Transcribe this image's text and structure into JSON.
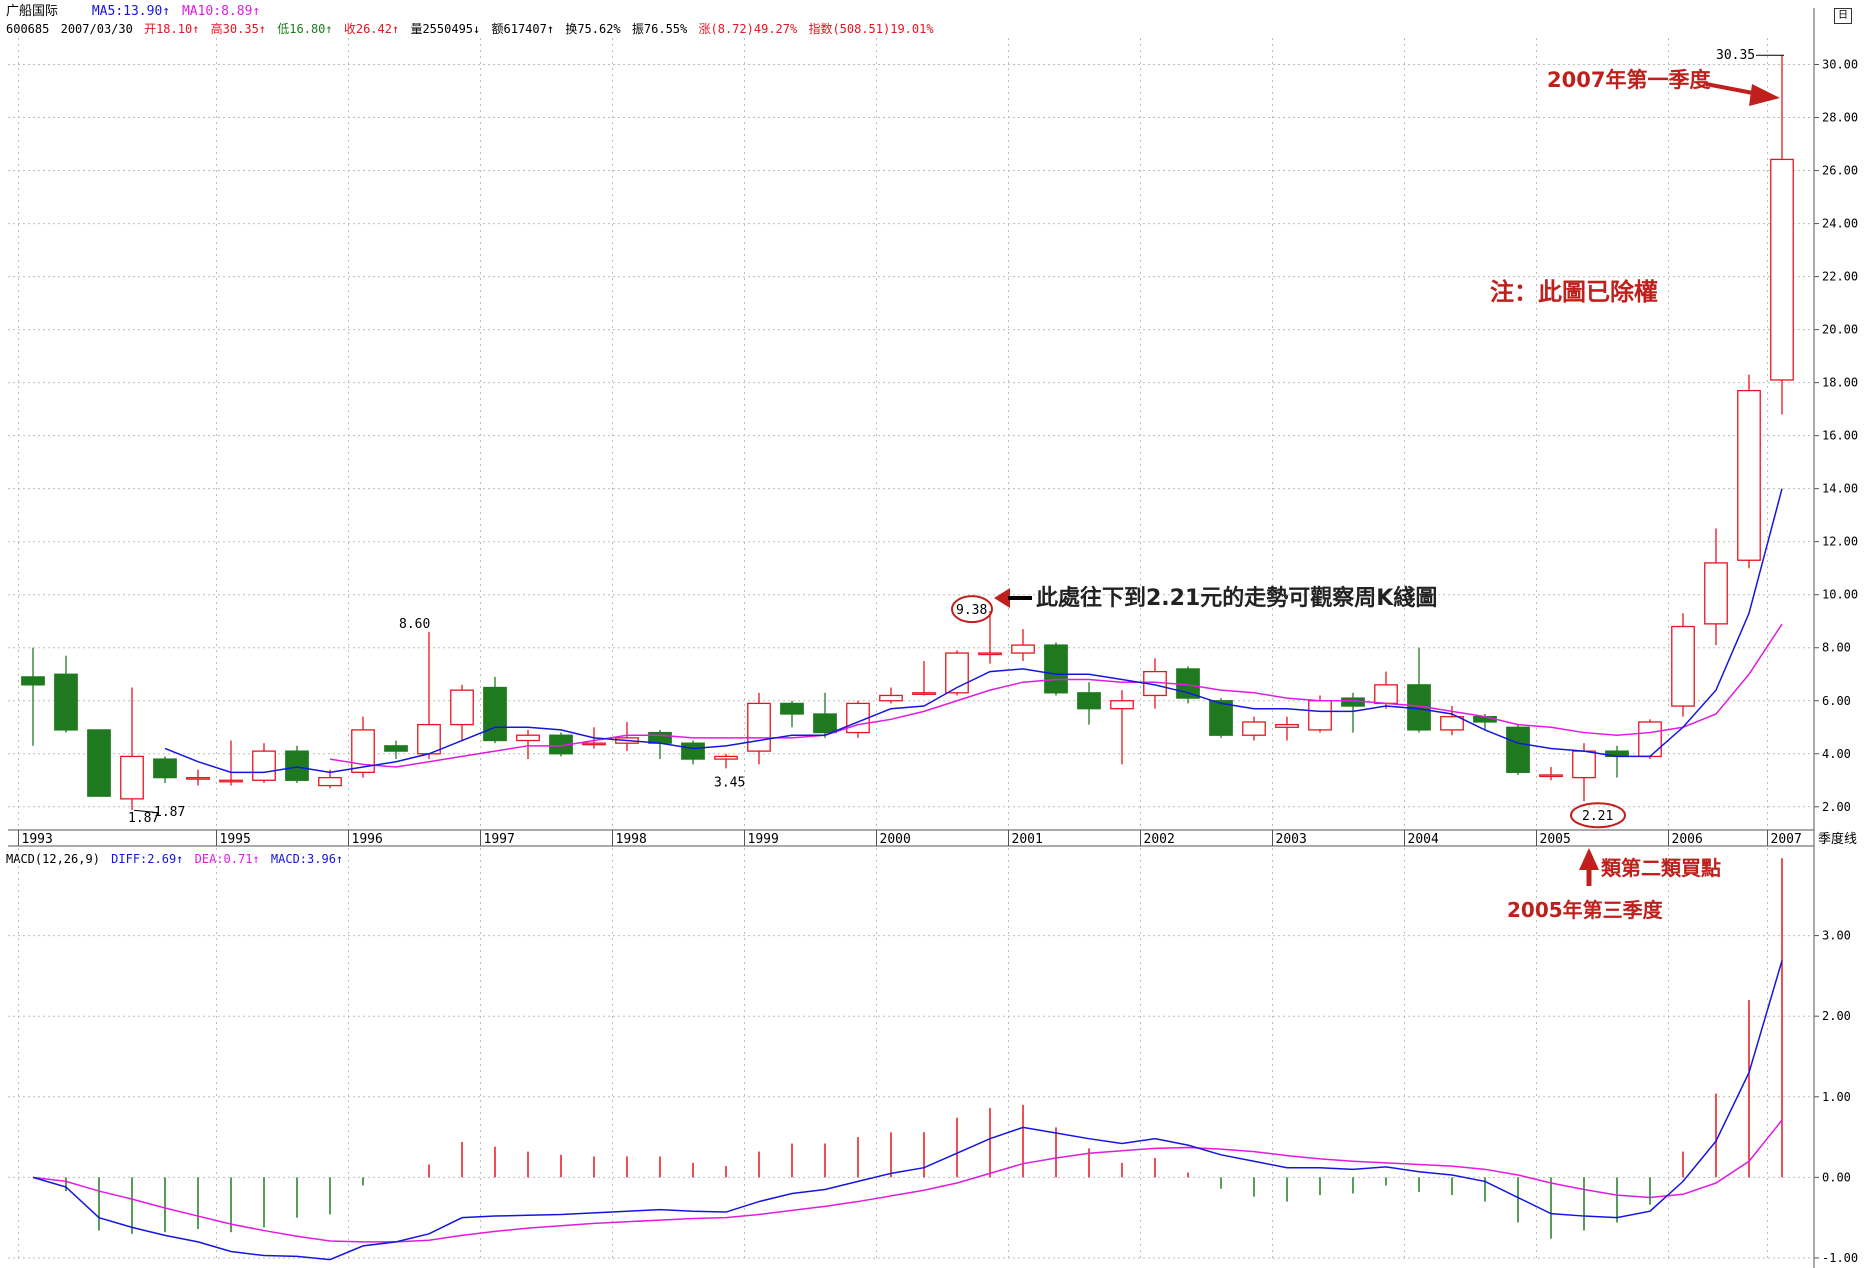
{
  "colors": {
    "up": "#e8141e",
    "down": "#1f7a1f",
    "ma5": "#1515e0",
    "ma10": "#e01ce0",
    "annotation": "#c0201c",
    "grid": "#bdbdbd"
  },
  "header": {
    "name": "广船国际",
    "ma5": "MA5:13.90↑",
    "ma10": "MA10:8.89↑",
    "code": "600685",
    "date": "2007/03/30",
    "open": "开18.10↑",
    "high": "高30.35↑",
    "low": "低16.80↑",
    "close": "收26.42↑",
    "volume": "量2550495↓",
    "amount": "额617407↑",
    "turnover": "换75.62%",
    "amplitude": "振76.55%",
    "change": "涨(8.72)49.27%",
    "index": "指数(508.51)19.01%"
  },
  "macd_header": {
    "label": "MACD(12,26,9)",
    "diff": "DIFF:2.69↑",
    "dea": "DEA:0.71↑",
    "macd": "MACD:3.96↑"
  },
  "period_label": "季度线",
  "annotations": {
    "q1_2007": "2007年第一季度",
    "note": "注：此圖已除權",
    "weekly_note": "此處往下到2.21元的走勢可觀察周K綫圖",
    "buy_point": "類第二類買點",
    "q3_2005": "2005年第三季度",
    "peak_2001": "9.38",
    "low_2005": "2.21",
    "high_1996": "8.60",
    "low_1993_a": "1.87",
    "low_1993_b": "1.87",
    "low_1999": "3.45",
    "high_2007": "30.35"
  },
  "bottom_caption": "...",
  "chart_data": [
    {
      "type": "candlestick",
      "title": "",
      "period": "quarter",
      "x_labels": [
        "1993",
        "1995",
        "1996",
        "1997",
        "1998",
        "1999",
        "2000",
        "2001",
        "2002",
        "2003",
        "2004",
        "2005",
        "2006",
        "2007"
      ],
      "yticks": [
        "2.00",
        "4.00",
        "6.00",
        "8.00",
        "10.00",
        "12.00",
        "14.00",
        "16.00",
        "18.00",
        "20.00",
        "22.00",
        "24.00",
        "26.00",
        "28.00",
        "30.00"
      ],
      "ylim": [
        1.2,
        31.0
      ],
      "candles": [
        {
          "o": 6.9,
          "c": 6.6,
          "h": 8.0,
          "l": 4.3
        },
        {
          "o": 7.0,
          "c": 4.9,
          "h": 7.7,
          "l": 4.8
        },
        {
          "o": 4.9,
          "c": 2.4,
          "h": 4.9,
          "l": 2.4
        },
        {
          "o": 2.3,
          "c": 3.9,
          "h": 6.5,
          "l": 1.87
        },
        {
          "o": 3.8,
          "c": 3.1,
          "h": 3.9,
          "l": 2.9
        },
        {
          "o": 3.1,
          "c": 3.1,
          "h": 3.4,
          "l": 2.8
        },
        {
          "o": 3.0,
          "c": 3.0,
          "h": 4.5,
          "l": 2.8
        },
        {
          "o": 3.0,
          "c": 4.1,
          "h": 4.4,
          "l": 2.9
        },
        {
          "o": 4.1,
          "c": 3.0,
          "h": 4.3,
          "l": 2.9
        },
        {
          "o": 2.8,
          "c": 3.1,
          "h": 3.4,
          "l": 2.7
        },
        {
          "o": 3.3,
          "c": 4.9,
          "h": 5.4,
          "l": 3.1
        },
        {
          "o": 4.3,
          "c": 4.1,
          "h": 4.5,
          "l": 3.8
        },
        {
          "o": 4.0,
          "c": 5.1,
          "h": 8.6,
          "l": 3.8
        },
        {
          "o": 5.1,
          "c": 6.4,
          "h": 6.6,
          "l": 4.5
        },
        {
          "o": 6.5,
          "c": 4.5,
          "h": 6.9,
          "l": 4.4
        },
        {
          "o": 4.5,
          "c": 4.7,
          "h": 4.9,
          "l": 3.8
        },
        {
          "o": 4.7,
          "c": 4.0,
          "h": 4.8,
          "l": 3.9
        },
        {
          "o": 4.4,
          "c": 4.4,
          "h": 5.0,
          "l": 4.2
        },
        {
          "o": 4.4,
          "c": 4.6,
          "h": 5.2,
          "l": 4.1
        },
        {
          "o": 4.8,
          "c": 4.4,
          "h": 4.9,
          "l": 3.8
        },
        {
          "o": 4.4,
          "c": 3.8,
          "h": 4.5,
          "l": 3.6
        },
        {
          "o": 3.8,
          "c": 3.9,
          "h": 4.0,
          "l": 3.45
        },
        {
          "o": 4.1,
          "c": 5.9,
          "h": 6.3,
          "l": 3.6
        },
        {
          "o": 5.9,
          "c": 5.5,
          "h": 6.0,
          "l": 5.0
        },
        {
          "o": 5.5,
          "c": 4.8,
          "h": 6.3,
          "l": 4.6
        },
        {
          "o": 4.8,
          "c": 5.9,
          "h": 6.0,
          "l": 4.6
        },
        {
          "o": 6.0,
          "c": 6.2,
          "h": 6.5,
          "l": 5.9
        },
        {
          "o": 6.3,
          "c": 6.3,
          "h": 7.5,
          "l": 6.2
        },
        {
          "o": 6.3,
          "c": 7.8,
          "h": 7.9,
          "l": 6.2
        },
        {
          "o": 7.8,
          "c": 7.8,
          "h": 9.38,
          "l": 7.4
        },
        {
          "o": 7.8,
          "c": 8.1,
          "h": 8.7,
          "l": 7.5
        },
        {
          "o": 8.1,
          "c": 6.3,
          "h": 8.2,
          "l": 6.2
        },
        {
          "o": 6.3,
          "c": 5.7,
          "h": 6.7,
          "l": 5.1
        },
        {
          "o": 5.7,
          "c": 6.0,
          "h": 6.4,
          "l": 3.6
        },
        {
          "o": 6.2,
          "c": 7.1,
          "h": 7.6,
          "l": 5.7
        },
        {
          "o": 7.2,
          "c": 6.1,
          "h": 7.3,
          "l": 5.9
        },
        {
          "o": 6.0,
          "c": 4.7,
          "h": 6.1,
          "l": 4.6
        },
        {
          "o": 4.7,
          "c": 5.2,
          "h": 5.4,
          "l": 4.5
        },
        {
          "o": 5.0,
          "c": 5.1,
          "h": 5.4,
          "l": 4.5
        },
        {
          "o": 4.9,
          "c": 6.0,
          "h": 6.2,
          "l": 4.8
        },
        {
          "o": 6.1,
          "c": 5.8,
          "h": 6.3,
          "l": 4.8
        },
        {
          "o": 5.9,
          "c": 6.6,
          "h": 7.1,
          "l": 5.7
        },
        {
          "o": 6.6,
          "c": 4.9,
          "h": 8.0,
          "l": 4.8
        },
        {
          "o": 4.9,
          "c": 5.4,
          "h": 5.8,
          "l": 4.7
        },
        {
          "o": 5.4,
          "c": 5.2,
          "h": 5.5,
          "l": 4.9
        },
        {
          "o": 5.0,
          "c": 3.3,
          "h": 5.1,
          "l": 3.2
        },
        {
          "o": 3.2,
          "c": 3.2,
          "h": 3.5,
          "l": 3.0
        },
        {
          "o": 3.1,
          "c": 4.1,
          "h": 4.4,
          "l": 2.21
        },
        {
          "o": 4.1,
          "c": 3.9,
          "h": 4.3,
          "l": 3.1
        },
        {
          "o": 3.9,
          "c": 5.2,
          "h": 5.3,
          "l": 3.8
        },
        {
          "o": 5.8,
          "c": 8.8,
          "h": 9.3,
          "l": 5.4
        },
        {
          "o": 8.9,
          "c": 11.2,
          "h": 12.5,
          "l": 8.1
        },
        {
          "o": 11.3,
          "c": 17.7,
          "h": 18.3,
          "l": 11.0
        },
        {
          "o": 18.1,
          "c": 26.42,
          "h": 30.35,
          "l": 16.8
        }
      ],
      "ma5": [
        null,
        null,
        null,
        null,
        4.2,
        3.7,
        3.3,
        3.3,
        3.5,
        3.3,
        3.5,
        3.7,
        4.0,
        4.5,
        5.0,
        5.0,
        4.9,
        4.6,
        4.5,
        4.4,
        4.2,
        4.3,
        4.5,
        4.7,
        4.7,
        5.2,
        5.7,
        5.8,
        6.5,
        7.1,
        7.2,
        7.0,
        7.0,
        6.8,
        6.6,
        6.3,
        5.9,
        5.7,
        5.7,
        5.6,
        5.6,
        5.8,
        5.7,
        5.5,
        4.9,
        4.4,
        4.2,
        4.1,
        3.9,
        3.9,
        5.0,
        6.4,
        9.3,
        14.0
      ],
      "ma10": [
        null,
        null,
        null,
        null,
        null,
        null,
        null,
        null,
        null,
        3.8,
        3.6,
        3.5,
        3.7,
        3.9,
        4.1,
        4.3,
        4.3,
        4.5,
        4.7,
        4.7,
        4.6,
        4.6,
        4.6,
        4.6,
        4.7,
        5.1,
        5.3,
        5.6,
        6.0,
        6.4,
        6.7,
        6.8,
        6.8,
        6.7,
        6.7,
        6.6,
        6.4,
        6.3,
        6.1,
        6.0,
        6.0,
        5.9,
        5.8,
        5.6,
        5.4,
        5.1,
        5.0,
        4.8,
        4.7,
        4.8,
        5.0,
        5.5,
        7.0,
        8.89
      ]
    },
    {
      "type": "macd",
      "title": "",
      "yticks": [
        "-1.00",
        "0.00",
        "1.00",
        "2.00",
        "3.00"
      ],
      "ylim": [
        -1.05,
        4.0
      ],
      "diff": [
        0,
        -0.12,
        -0.5,
        -0.62,
        -0.72,
        -0.8,
        -0.92,
        -0.97,
        -0.98,
        -1.02,
        -0.85,
        -0.8,
        -0.7,
        -0.5,
        -0.48,
        -0.47,
        -0.46,
        -0.44,
        -0.42,
        -0.4,
        -0.42,
        -0.43,
        -0.3,
        -0.2,
        -0.15,
        -0.05,
        0.05,
        0.12,
        0.3,
        0.48,
        0.62,
        0.55,
        0.48,
        0.42,
        0.48,
        0.4,
        0.28,
        0.2,
        0.12,
        0.12,
        0.1,
        0.13,
        0.07,
        0.03,
        -0.05,
        -0.25,
        -0.45,
        -0.48,
        -0.5,
        -0.42,
        -0.05,
        0.45,
        1.3,
        2.69
      ],
      "dea": [
        0,
        -0.05,
        -0.17,
        -0.27,
        -0.38,
        -0.48,
        -0.58,
        -0.66,
        -0.73,
        -0.79,
        -0.8,
        -0.8,
        -0.78,
        -0.72,
        -0.67,
        -0.63,
        -0.6,
        -0.57,
        -0.55,
        -0.53,
        -0.51,
        -0.5,
        -0.46,
        -0.41,
        -0.36,
        -0.3,
        -0.23,
        -0.16,
        -0.07,
        0.05,
        0.17,
        0.24,
        0.3,
        0.33,
        0.36,
        0.37,
        0.35,
        0.32,
        0.27,
        0.23,
        0.2,
        0.18,
        0.16,
        0.14,
        0.1,
        0.03,
        -0.07,
        -0.15,
        -0.22,
        -0.25,
        -0.21,
        -0.07,
        0.2,
        0.71
      ],
      "macd": [
        0,
        -0.17,
        -0.66,
        -0.7,
        -0.68,
        -0.64,
        -0.68,
        -0.62,
        -0.5,
        -0.46,
        -0.1,
        0.0,
        0.16,
        0.44,
        0.38,
        0.32,
        0.28,
        0.26,
        0.26,
        0.26,
        0.18,
        0.14,
        0.32,
        0.42,
        0.42,
        0.5,
        0.56,
        0.56,
        0.74,
        0.86,
        0.9,
        0.62,
        0.36,
        0.18,
        0.24,
        0.06,
        -0.14,
        -0.24,
        -0.3,
        -0.22,
        -0.2,
        -0.1,
        -0.18,
        -0.22,
        -0.3,
        -0.56,
        -0.76,
        -0.66,
        -0.56,
        -0.34,
        0.32,
        1.04,
        2.2,
        3.96
      ]
    }
  ]
}
